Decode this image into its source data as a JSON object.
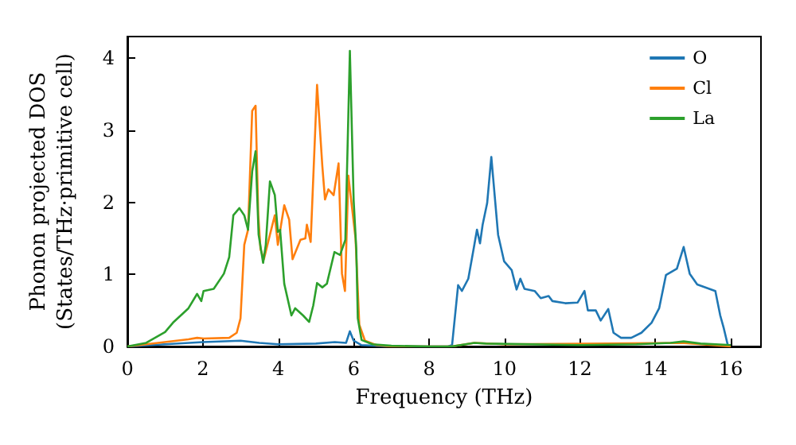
{
  "chart_data": {
    "type": "line",
    "xlabel": "Frequency (THz)",
    "ylabel": "Phonon projected DOS\n(States/THz·primitive cell)",
    "xlim": [
      0,
      16.8
    ],
    "ylim": [
      0,
      4.3
    ],
    "xticks": [
      0,
      2,
      4,
      6,
      8,
      10,
      12,
      14,
      16
    ],
    "yticks": [
      0,
      1,
      2,
      3,
      4
    ],
    "grid": false,
    "legend": "top right",
    "marker": "none",
    "line_style": "solid",
    "series": [
      {
        "name": "O",
        "color": "#1f77b4",
        "x": [
          0,
          1,
          2,
          3,
          3.5,
          4,
          5,
          5.5,
          5.8,
          5.9,
          6.0,
          6.2,
          7,
          8.5,
          8.61,
          8.77,
          8.87,
          9.04,
          9.18,
          9.27,
          9.35,
          9.42,
          9.54,
          9.65,
          9.83,
          9.99,
          10.19,
          10.32,
          10.42,
          10.53,
          10.8,
          10.96,
          11.17,
          11.27,
          11.61,
          11.94,
          12.12,
          12.21,
          12.42,
          12.55,
          12.75,
          12.89,
          13.09,
          13.36,
          13.63,
          13.9,
          14.1,
          14.28,
          14.57,
          14.75,
          14.91,
          15.11,
          15.59,
          15.72,
          15.81,
          15.92
        ],
        "values": [
          0,
          0.03,
          0.06,
          0.08,
          0.05,
          0.03,
          0.04,
          0.06,
          0.05,
          0.21,
          0.08,
          0.02,
          0,
          0,
          0.02,
          0.85,
          0.77,
          0.94,
          1.35,
          1.62,
          1.43,
          1.69,
          1.99,
          2.63,
          1.55,
          1.18,
          1.06,
          0.79,
          0.94,
          0.8,
          0.77,
          0.67,
          0.7,
          0.63,
          0.6,
          0.61,
          0.77,
          0.5,
          0.5,
          0.36,
          0.52,
          0.19,
          0.12,
          0.12,
          0.19,
          0.33,
          0.53,
          0.99,
          1.08,
          1.38,
          1.01,
          0.86,
          0.77,
          0.43,
          0.26,
          0.02
        ]
      },
      {
        "name": "Cl",
        "color": "#ff7f0e",
        "x": [
          0,
          0.81,
          1.62,
          1.85,
          2.02,
          2.7,
          2.9,
          3.0,
          3.1,
          3.2,
          3.31,
          3.4,
          3.47,
          3.53,
          3.62,
          3.78,
          3.91,
          3.99,
          4.16,
          4.29,
          4.38,
          4.59,
          4.72,
          4.76,
          4.86,
          5.03,
          5.17,
          5.24,
          5.33,
          5.47,
          5.6,
          5.69,
          5.77,
          5.86,
          6.05,
          6.15,
          6.3,
          6.6,
          7,
          8.6,
          9.2,
          10,
          14.7,
          15.5,
          16
        ],
        "values": [
          0,
          0.05,
          0.1,
          0.12,
          0.11,
          0.12,
          0.19,
          0.39,
          1.41,
          1.62,
          3.27,
          3.34,
          1.83,
          1.35,
          1.21,
          1.55,
          1.82,
          1.41,
          1.96,
          1.76,
          1.21,
          1.48,
          1.5,
          1.69,
          1.45,
          3.63,
          2.5,
          2.04,
          2.18,
          2.1,
          2.54,
          1.01,
          0.77,
          2.37,
          1.5,
          0.3,
          0.08,
          0.02,
          0,
          0,
          0.05,
          0.03,
          0.05,
          0.02,
          0
        ]
      },
      {
        "name": "La",
        "color": "#2ca02c",
        "x": [
          0,
          0.5,
          1.0,
          1.21,
          1.62,
          1.85,
          1.96,
          2.02,
          2.29,
          2.56,
          2.7,
          2.81,
          2.97,
          3.1,
          3.2,
          3.31,
          3.4,
          3.48,
          3.6,
          3.67,
          3.78,
          3.91,
          3.99,
          4.05,
          4.16,
          4.35,
          4.45,
          4.66,
          4.82,
          4.93,
          5.03,
          5.17,
          5.29,
          5.49,
          5.64,
          5.78,
          5.9,
          6.0,
          6.07,
          6.11,
          6.21,
          6.5,
          7,
          8,
          8.6,
          9.2,
          9.5,
          12,
          13.5,
          14.4,
          14.75,
          15.2,
          16
        ],
        "values": [
          0,
          0.05,
          0.2,
          0.33,
          0.53,
          0.73,
          0.63,
          0.77,
          0.8,
          1.01,
          1.24,
          1.82,
          1.92,
          1.82,
          1.62,
          2.43,
          2.71,
          1.55,
          1.16,
          1.41,
          2.29,
          2.1,
          1.59,
          1.62,
          0.87,
          0.43,
          0.53,
          0.43,
          0.34,
          0.57,
          0.88,
          0.82,
          0.87,
          1.31,
          1.27,
          1.48,
          4.1,
          2.03,
          1.35,
          0.39,
          0.09,
          0.03,
          0.01,
          0,
          0,
          0.05,
          0.04,
          0.02,
          0.03,
          0.05,
          0.07,
          0.04,
          0.02
        ]
      }
    ]
  }
}
